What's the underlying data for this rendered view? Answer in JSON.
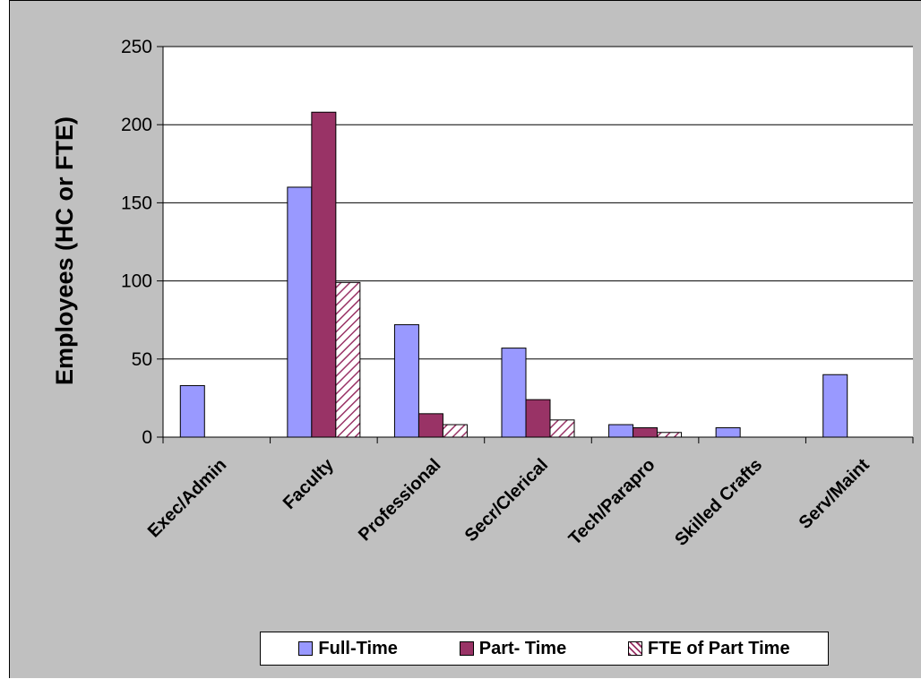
{
  "chart_data": {
    "type": "bar",
    "categories": [
      "Exec/Admin",
      "Faculty",
      "Professional",
      "Secr/Clerical",
      "Tech/Parapro",
      "Skilled Crafts",
      "Serv/Maint"
    ],
    "series": [
      {
        "name": "Full-Time",
        "values": [
          33,
          160,
          72,
          57,
          8,
          6,
          40
        ],
        "color": "#9999ff",
        "pattern": "solid"
      },
      {
        "name": "Part- Time",
        "values": [
          0,
          208,
          15,
          24,
          6,
          0,
          0
        ],
        "color": "#993366",
        "pattern": "solid"
      },
      {
        "name": "FTE of Part Time",
        "values": [
          0,
          99,
          8,
          11,
          3,
          0,
          0
        ],
        "color": "#993366",
        "pattern": "diagonal-hatch"
      }
    ],
    "ylabel": "Employees (HC or FTE)",
    "xlabel": "",
    "ylim": [
      0,
      250
    ],
    "yticks": [
      "0",
      "50",
      "100",
      "150",
      "200",
      "250"
    ],
    "grid": true,
    "legend_position": "bottom",
    "plot_background": "#ffffff",
    "chart_background": "#c0c0c0"
  }
}
